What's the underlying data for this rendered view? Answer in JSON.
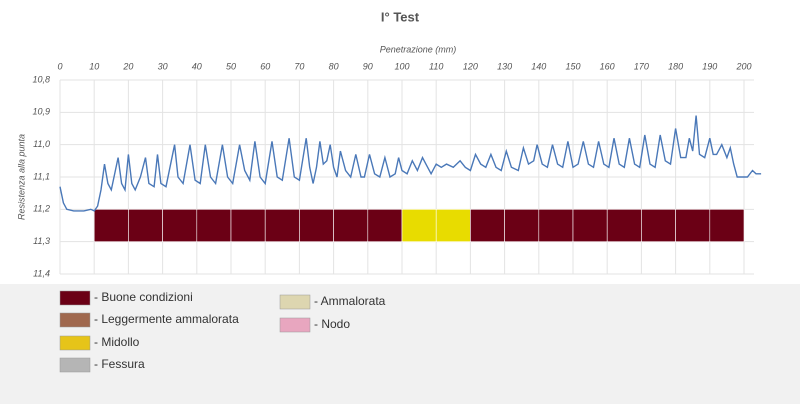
{
  "chart_data": {
    "type": "line",
    "title": "I° Test",
    "xlabel": "Penetrazione (mm)",
    "ylabel": "Resistenza alla punta",
    "xlim": [
      0,
      200
    ],
    "xticks": [
      0,
      10,
      20,
      30,
      40,
      50,
      60,
      70,
      80,
      90,
      100,
      110,
      120,
      130,
      140,
      150,
      160,
      170,
      180,
      190,
      200
    ],
    "ylim": [
      10.8,
      11.4
    ],
    "yinverted": true,
    "yticks": [
      {
        "value": 10.8,
        "label": "10,8"
      },
      {
        "value": 10.9,
        "label": "10,9"
      },
      {
        "value": 11.0,
        "label": "11,0"
      },
      {
        "value": 11.1,
        "label": "11,1"
      },
      {
        "value": 11.2,
        "label": "11,2"
      },
      {
        "value": 11.3,
        "label": "11,3"
      },
      {
        "value": 11.4,
        "label": "11,4"
      }
    ],
    "grid": true,
    "x": [
      0,
      1,
      2,
      4,
      7,
      9,
      10,
      11,
      12,
      13,
      14,
      15,
      17,
      18,
      19,
      20,
      21,
      22,
      23.5,
      25,
      26,
      27.5,
      28.5,
      29.5,
      31,
      33.5,
      34.5,
      36,
      38,
      39.5,
      41,
      42.5,
      44,
      45.5,
      47.5,
      49,
      50.5,
      52.5,
      54,
      55.5,
      57,
      58.5,
      60,
      62,
      63.5,
      65,
      67,
      68.5,
      70,
      72,
      73,
      74,
      75,
      76,
      77,
      78,
      79,
      80,
      81,
      82,
      83.5,
      85,
      86.5,
      88,
      89,
      90.5,
      92,
      93.5,
      95,
      96.5,
      98,
      99,
      100,
      101.5,
      103,
      104.5,
      106,
      107,
      108.5,
      110,
      111.5,
      113,
      115,
      117,
      118.5,
      120,
      121.5,
      123,
      124.5,
      126,
      127.5,
      129,
      130.5,
      132,
      134,
      135.5,
      137,
      138.5,
      139.5,
      141,
      142.5,
      144,
      145.5,
      147,
      148.5,
      150,
      151.5,
      153,
      154.5,
      156,
      157.5,
      159,
      160.5,
      162,
      163.5,
      165,
      166.5,
      168,
      169.5,
      171,
      172.5,
      174,
      175.5,
      177,
      178.5,
      180,
      181.5,
      183,
      184,
      185,
      186,
      187,
      188.5,
      190,
      191,
      192,
      193.5,
      195,
      196,
      197,
      198,
      199.5,
      201,
      202.5,
      203.5,
      205
    ],
    "series": [
      {
        "color": "#4a78b8",
        "values": [
          11.13,
          11.18,
          11.2,
          11.205,
          11.205,
          11.2,
          11.205,
          11.19,
          11.14,
          11.06,
          11.12,
          11.14,
          11.04,
          11.12,
          11.14,
          11.03,
          11.12,
          11.14,
          11.1,
          11.04,
          11.12,
          11.13,
          11.03,
          11.12,
          11.13,
          11.0,
          11.1,
          11.12,
          11.0,
          11.11,
          11.12,
          11.0,
          11.1,
          11.12,
          11.0,
          11.1,
          11.12,
          11.0,
          11.08,
          11.11,
          10.99,
          11.1,
          11.12,
          10.99,
          11.1,
          11.11,
          10.98,
          11.1,
          11.11,
          10.98,
          11.07,
          11.12,
          11.07,
          10.99,
          11.06,
          11.05,
          11.0,
          11.07,
          11.1,
          11.02,
          11.08,
          11.1,
          11.03,
          11.1,
          11.1,
          11.03,
          11.09,
          11.1,
          11.04,
          11.1,
          11.09,
          11.04,
          11.08,
          11.09,
          11.05,
          11.08,
          11.04,
          11.06,
          11.09,
          11.06,
          11.07,
          11.06,
          11.07,
          11.05,
          11.07,
          11.08,
          11.03,
          11.06,
          11.07,
          11.03,
          11.07,
          11.08,
          11.02,
          11.07,
          11.08,
          11.01,
          11.06,
          11.05,
          11.0,
          11.06,
          11.07,
          11.0,
          11.06,
          11.07,
          10.99,
          11.07,
          11.06,
          10.99,
          11.06,
          11.07,
          10.99,
          11.06,
          11.07,
          10.98,
          11.06,
          11.07,
          10.98,
          11.06,
          11.07,
          10.97,
          11.06,
          11.07,
          10.97,
          11.05,
          11.06,
          10.95,
          11.04,
          11.04,
          10.98,
          11.02,
          10.91,
          11.03,
          11.04,
          10.98,
          11.03,
          11.03,
          11.0,
          11.04,
          11.01,
          11.06,
          11.1,
          11.1,
          11.1,
          11.08,
          11.09,
          11.09
        ]
      }
    ],
    "band": {
      "y": [
        11.2,
        11.3
      ],
      "segments": [
        {
          "x": [
            10,
            20
          ],
          "color": "#6b0015"
        },
        {
          "x": [
            20,
            30
          ],
          "color": "#6b0015"
        },
        {
          "x": [
            30,
            40
          ],
          "color": "#6b0015"
        },
        {
          "x": [
            40,
            50
          ],
          "color": "#6b0015"
        },
        {
          "x": [
            50,
            60
          ],
          "color": "#6b0015"
        },
        {
          "x": [
            60,
            70
          ],
          "color": "#6b0015"
        },
        {
          "x": [
            70,
            80
          ],
          "color": "#6b0015"
        },
        {
          "x": [
            80,
            90
          ],
          "color": "#6b0015"
        },
        {
          "x": [
            90,
            100
          ],
          "color": "#6b0015"
        },
        {
          "x": [
            100,
            110
          ],
          "color": "#e8dc00"
        },
        {
          "x": [
            110,
            120
          ],
          "color": "#e8dc00"
        },
        {
          "x": [
            120,
            130
          ],
          "color": "#6b0015"
        },
        {
          "x": [
            130,
            140
          ],
          "color": "#6b0015"
        },
        {
          "x": [
            140,
            150
          ],
          "color": "#6b0015"
        },
        {
          "x": [
            150,
            160
          ],
          "color": "#6b0015"
        },
        {
          "x": [
            160,
            170
          ],
          "color": "#6b0015"
        },
        {
          "x": [
            170,
            180
          ],
          "color": "#6b0015"
        },
        {
          "x": [
            180,
            190
          ],
          "color": "#6b0015"
        },
        {
          "x": [
            190,
            200
          ],
          "color": "#6b0015"
        }
      ]
    },
    "legend": [
      {
        "label": "- Buone condizioni",
        "color": "#6b0015"
      },
      {
        "label": "- Leggermente ammalorata",
        "color": "#a0684e"
      },
      {
        "label": "- Midollo",
        "color": "#e6c419"
      },
      {
        "label": "- Fessura",
        "color": "#b5b5b5"
      },
      {
        "label": "- Ammalorata",
        "color": "#ddd6b0"
      },
      {
        "label": "- Nodo",
        "color": "#e8a6bf"
      }
    ]
  }
}
